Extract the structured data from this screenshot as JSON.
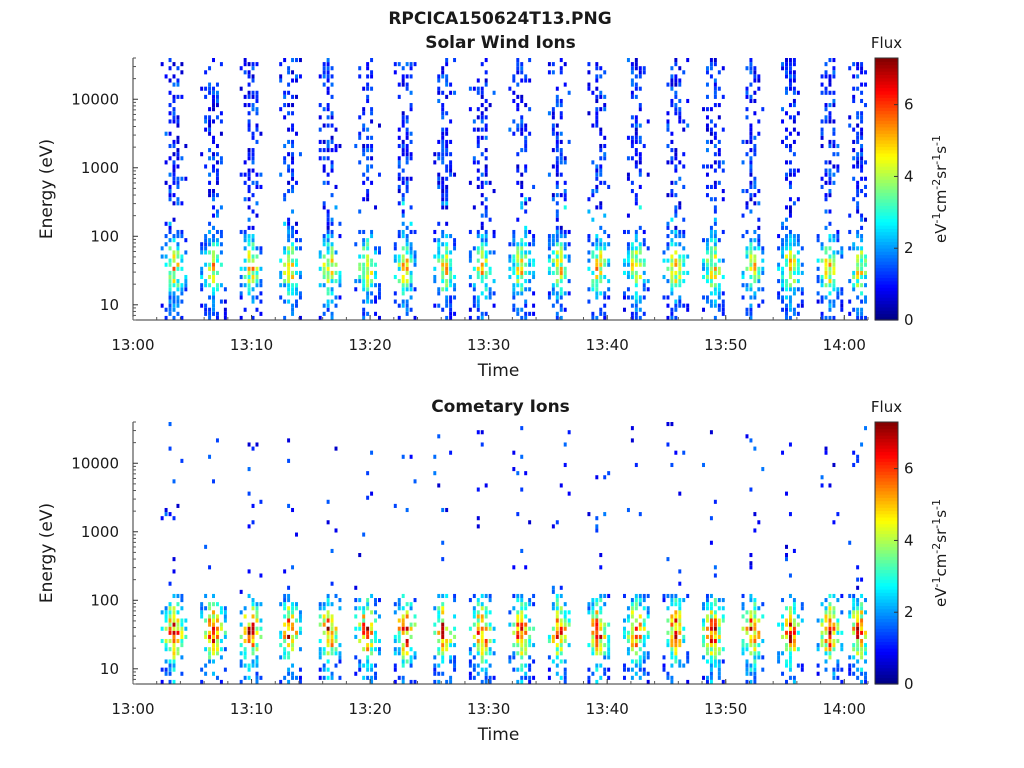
{
  "figure_title": "RPCICA150624T13.PNG",
  "chart_data": [
    {
      "type": "heatmap",
      "title": "Solar Wind Ions",
      "xlabel": "Time",
      "ylabel": "Energy (eV)",
      "x_ticks": [
        "13:00",
        "13:10",
        "13:20",
        "13:30",
        "13:40",
        "13:50",
        "14:00"
      ],
      "xlim": [
        "13:00",
        "14:02"
      ],
      "y_ticks": [
        "10",
        "100",
        "1000",
        "10000"
      ],
      "yscale": "log",
      "ylim": [
        6,
        40000
      ],
      "colorbar": {
        "title": "Flux",
        "label_main": "eV",
        "label_parts": [
          "-1",
          "cm",
          "-2",
          "sr",
          "-1",
          "s",
          "-1"
        ],
        "ticks": [
          "0",
          "2",
          "4",
          "6"
        ],
        "range": [
          0,
          7.3
        ],
        "colormap": "jet"
      },
      "scan_center_minutes": [
        3.5,
        6.8,
        10.0,
        13.3,
        16.6,
        19.8,
        23.0,
        26.3,
        29.5,
        32.8,
        36.0,
        39.3,
        42.5,
        45.8,
        49.0,
        52.3,
        55.5,
        58.8,
        61.3
      ],
      "low_energy_peak_eV": 35,
      "low_energy_peak_flux": 5.0,
      "high_energy_band_flux": 1.0
    },
    {
      "type": "heatmap",
      "title": "Cometary Ions",
      "xlabel": "Time",
      "ylabel": "Energy (eV)",
      "x_ticks": [
        "13:00",
        "13:10",
        "13:20",
        "13:30",
        "13:40",
        "13:50",
        "14:00"
      ],
      "xlim": [
        "13:00",
        "14:02"
      ],
      "y_ticks": [
        "10",
        "100",
        "1000",
        "10000"
      ],
      "yscale": "log",
      "ylim": [
        6,
        40000
      ],
      "colorbar": {
        "title": "Flux",
        "label_main": "eV",
        "label_parts": [
          "-1",
          "cm",
          "-2",
          "sr",
          "-1",
          "s",
          "-1"
        ],
        "ticks": [
          "0",
          "2",
          "4",
          "6"
        ],
        "range": [
          0,
          7.3
        ],
        "colormap": "jet"
      },
      "scan_center_minutes": [
        3.5,
        6.8,
        10.0,
        13.3,
        16.6,
        19.8,
        23.0,
        26.3,
        29.5,
        32.8,
        36.0,
        39.3,
        42.5,
        45.8,
        49.0,
        52.3,
        55.5,
        58.8,
        61.3
      ],
      "low_energy_peak_eV": 35,
      "low_energy_peak_flux": 6.5,
      "high_energy_band_flux": 1.0
    }
  ]
}
